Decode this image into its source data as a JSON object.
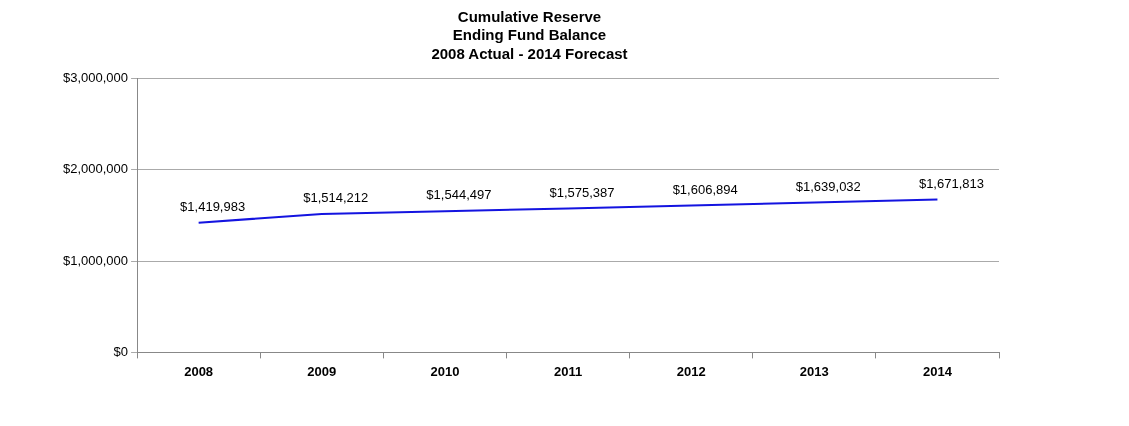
{
  "chart_data": {
    "type": "line",
    "title": "Cumulative Reserve\nEnding Fund Balance\n2008 Actual - 2014 Forecast",
    "categories": [
      "2008",
      "2009",
      "2010",
      "2011",
      "2012",
      "2013",
      "2014"
    ],
    "series": [
      {
        "color": "#1414e0",
        "values": [
          1419983,
          1514212,
          1544497,
          1575387,
          1606894,
          1639032,
          1671813
        ],
        "value_labels": [
          "$1,419,983",
          "$1,514,212",
          "$1,544,497",
          "$1,575,387",
          "$1,606,894",
          "$1,639,032",
          "$1,671,813"
        ]
      }
    ],
    "ylim": [
      0,
      3000000
    ],
    "yticks": [
      {
        "value": 0,
        "label": "$0"
      },
      {
        "value": 1000000,
        "label": "$1,000,000"
      },
      {
        "value": 2000000,
        "label": "$2,000,000"
      },
      {
        "value": 3000000,
        "label": "$3,000,000"
      }
    ],
    "grid": "y",
    "legend": false,
    "marker": "none",
    "line_style": "solid"
  }
}
